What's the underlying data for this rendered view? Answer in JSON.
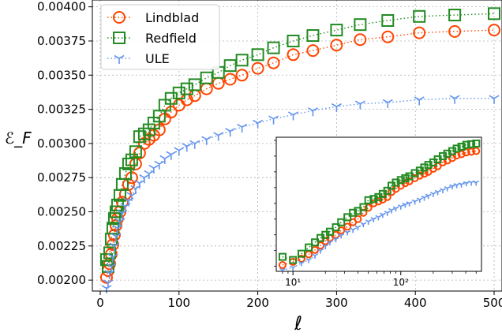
{
  "chart_data": [
    {
      "type": "line",
      "xlabel": "ℓ",
      "ylabel": "ℰ_F",
      "xlim": [
        -10,
        510
      ],
      "ylim": [
        0.00192,
        0.00405
      ],
      "xticks": [
        0,
        100,
        200,
        300,
        400,
        500
      ],
      "yticks": [
        0.002,
        0.00225,
        0.0025,
        0.00275,
        0.003,
        0.00325,
        0.0035,
        0.00375,
        0.004
      ],
      "ytick_labels": [
        "0.00200",
        "0.00225",
        "0.00250",
        "0.00275",
        "0.00300",
        "0.00325",
        "0.00350",
        "0.00375",
        "0.00400"
      ],
      "grid": true,
      "legend_position": "upper-left",
      "series": [
        {
          "name": "Lindblad",
          "color": "#ff4500",
          "marker": "circle",
          "x": [
            8,
            10,
            12,
            14,
            16,
            18,
            20,
            22,
            25,
            28,
            32,
            36,
            40,
            45,
            50,
            56,
            62,
            68,
            75,
            82,
            90,
            100,
            110,
            120,
            135,
            150,
            165,
            180,
            200,
            220,
            245,
            270,
            300,
            330,
            365,
            405,
            450,
            500
          ],
          "y": [
            0.00202,
            0.00207,
            0.00212,
            0.00219,
            0.00226,
            0.00233,
            0.0024,
            0.00245,
            0.0025,
            0.00257,
            0.00263,
            0.0027,
            0.00275,
            0.00285,
            0.00293,
            0.003,
            0.00303,
            0.00306,
            0.0031,
            0.00318,
            0.00323,
            0.00328,
            0.00332,
            0.00335,
            0.0034,
            0.00344,
            0.00347,
            0.0035,
            0.00355,
            0.00359,
            0.00365,
            0.00368,
            0.00372,
            0.00376,
            0.00378,
            0.00381,
            0.00382,
            0.00383
          ]
        },
        {
          "name": "Redfield",
          "color": "#228b22",
          "marker": "square",
          "x": [
            8,
            10,
            12,
            14,
            16,
            18,
            20,
            22,
            25,
            28,
            32,
            36,
            40,
            45,
            50,
            56,
            62,
            68,
            75,
            82,
            90,
            100,
            110,
            120,
            135,
            150,
            165,
            180,
            200,
            220,
            245,
            270,
            300,
            330,
            365,
            405,
            450,
            500
          ],
          "y": [
            0.00215,
            0.0021,
            0.0022,
            0.0023,
            0.00238,
            0.00245,
            0.0025,
            0.00255,
            0.00262,
            0.0027,
            0.00278,
            0.00285,
            0.00288,
            0.00294,
            0.00305,
            0.00307,
            0.0031,
            0.00315,
            0.0032,
            0.00328,
            0.00333,
            0.00337,
            0.0034,
            0.00343,
            0.00348,
            0.00352,
            0.00357,
            0.00361,
            0.00365,
            0.0037,
            0.00375,
            0.00379,
            0.00383,
            0.00387,
            0.0039,
            0.00393,
            0.00394,
            0.00395
          ]
        },
        {
          "name": "ULE",
          "color": "#6495ed",
          "marker": "tri_down",
          "x": [
            8,
            10,
            12,
            14,
            16,
            18,
            20,
            22,
            25,
            28,
            32,
            36,
            40,
            45,
            50,
            56,
            62,
            68,
            75,
            82,
            90,
            100,
            110,
            120,
            135,
            150,
            165,
            180,
            200,
            220,
            245,
            270,
            300,
            330,
            365,
            405,
            450,
            500
          ],
          "y": [
            0.00194,
            0.00198,
            0.00205,
            0.0021,
            0.00217,
            0.00225,
            0.00232,
            0.00238,
            0.00243,
            0.00249,
            0.00254,
            0.00258,
            0.00262,
            0.00267,
            0.00271,
            0.00275,
            0.00278,
            0.00282,
            0.00285,
            0.00289,
            0.00292,
            0.00295,
            0.00298,
            0.003,
            0.00303,
            0.00306,
            0.00309,
            0.00312,
            0.00315,
            0.00318,
            0.00321,
            0.00324,
            0.00327,
            0.00329,
            0.0033,
            0.00332,
            0.00333,
            0.00333
          ]
        }
      ]
    },
    {
      "type": "line",
      "xscale": "log",
      "xlim": [
        7,
        560
      ],
      "ylim": [
        0.00192,
        0.00405
      ],
      "xticks": [
        10,
        100
      ],
      "xtick_labels": [
        "10¹",
        "10²"
      ],
      "grid": false,
      "series_from": "same as main plot (Lindblad, Redfield, ULE)"
    }
  ]
}
